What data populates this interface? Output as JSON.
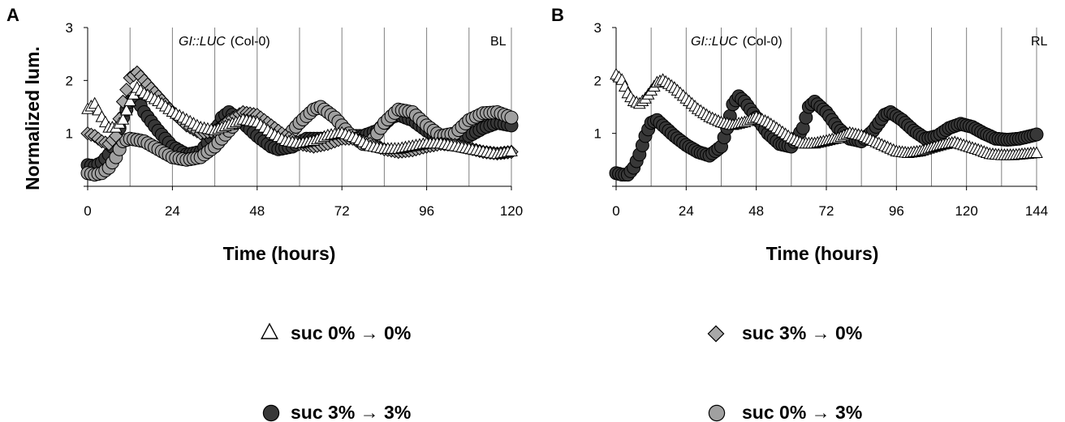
{
  "colors": {
    "suc00": "#ffffff",
    "suc30": "#a8a8a8",
    "suc33": "#383838",
    "suc03": "#a0a0a0",
    "edge": "#000000",
    "grid": "#808080"
  },
  "legend": [
    {
      "label": "suc 0% → 0%",
      "marker": "triangle",
      "fill": "#ffffff"
    },
    {
      "label": "suc 3% → 0%",
      "marker": "diamond",
      "fill": "#a8a8a8"
    },
    {
      "label": "suc 3% → 3%",
      "marker": "circle",
      "fill": "#383838"
    },
    {
      "label": "suc 0% → 3%",
      "marker": "circle",
      "fill": "#a0a0a0"
    }
  ],
  "chart_data": [
    {
      "type": "scatter",
      "panel": "A",
      "gene_italic": "GI::LUC",
      "genotype": "(Col-0)",
      "light": "BL",
      "xlabel": "Time (hours)",
      "ylabel": "Normalized lum.",
      "xlim": [
        0,
        120
      ],
      "ylim": [
        0,
        3
      ],
      "xticks": [
        0,
        24,
        48,
        72,
        96,
        120
      ],
      "yticks": [
        1,
        2,
        3
      ],
      "grid": "vertical",
      "series": [
        {
          "name": "suc 0% → 0%",
          "marker": "triangle",
          "points": [
            [
              0,
              1.45
            ],
            [
              2,
              1.55
            ],
            [
              4,
              1.3
            ],
            [
              6,
              1.1
            ],
            [
              8,
              1.1
            ],
            [
              10,
              1.25
            ],
            [
              12,
              1.6
            ],
            [
              14,
              1.85
            ],
            [
              16,
              1.75
            ],
            [
              20,
              1.6
            ],
            [
              24,
              1.4
            ],
            [
              28,
              1.25
            ],
            [
              32,
              1.1
            ],
            [
              36,
              1.05
            ],
            [
              40,
              1.15
            ],
            [
              44,
              1.25
            ],
            [
              48,
              1.2
            ],
            [
              52,
              1.0
            ],
            [
              56,
              0.85
            ],
            [
              60,
              0.8
            ],
            [
              64,
              0.85
            ],
            [
              68,
              0.95
            ],
            [
              72,
              1.0
            ],
            [
              76,
              0.9
            ],
            [
              80,
              0.75
            ],
            [
              84,
              0.7
            ],
            [
              88,
              0.7
            ],
            [
              92,
              0.75
            ],
            [
              96,
              0.8
            ],
            [
              100,
              0.8
            ],
            [
              104,
              0.75
            ],
            [
              108,
              0.7
            ],
            [
              112,
              0.65
            ],
            [
              116,
              0.6
            ],
            [
              120,
              0.65
            ]
          ]
        },
        {
          "name": "suc 3% → 0%",
          "marker": "diamond",
          "points": [
            [
              0,
              1.0
            ],
            [
              2,
              0.95
            ],
            [
              4,
              0.85
            ],
            [
              6,
              0.8
            ],
            [
              8,
              0.95
            ],
            [
              10,
              1.6
            ],
            [
              12,
              2.05
            ],
            [
              14,
              2.15
            ],
            [
              16,
              2.0
            ],
            [
              20,
              1.7
            ],
            [
              24,
              1.4
            ],
            [
              28,
              1.15
            ],
            [
              32,
              1.0
            ],
            [
              36,
              1.05
            ],
            [
              40,
              1.25
            ],
            [
              44,
              1.4
            ],
            [
              48,
              1.35
            ],
            [
              52,
              1.15
            ],
            [
              56,
              0.95
            ],
            [
              60,
              0.8
            ],
            [
              64,
              0.75
            ],
            [
              68,
              0.8
            ],
            [
              72,
              0.9
            ],
            [
              76,
              0.9
            ],
            [
              80,
              0.8
            ],
            [
              84,
              0.7
            ],
            [
              88,
              0.65
            ],
            [
              92,
              0.68
            ],
            [
              96,
              0.75
            ],
            [
              100,
              0.8
            ],
            [
              104,
              0.78
            ],
            [
              108,
              0.72
            ],
            [
              112,
              0.65
            ],
            [
              116,
              0.62
            ],
            [
              120,
              0.65
            ]
          ]
        },
        {
          "name": "suc 3% → 3%",
          "marker": "circle",
          "points": [
            [
              0,
              0.4
            ],
            [
              2,
              0.38
            ],
            [
              4,
              0.45
            ],
            [
              6,
              0.6
            ],
            [
              8,
              0.9
            ],
            [
              10,
              1.3
            ],
            [
              12,
              1.6
            ],
            [
              14,
              1.65
            ],
            [
              16,
              1.4
            ],
            [
              20,
              1.05
            ],
            [
              24,
              0.75
            ],
            [
              28,
              0.6
            ],
            [
              32,
              0.65
            ],
            [
              36,
              1.0
            ],
            [
              38,
              1.3
            ],
            [
              40,
              1.4
            ],
            [
              44,
              1.2
            ],
            [
              48,
              0.95
            ],
            [
              52,
              0.75
            ],
            [
              54,
              0.7
            ],
            [
              58,
              0.75
            ],
            [
              62,
              0.9
            ],
            [
              66,
              0.9
            ],
            [
              70,
              0.9
            ],
            [
              74,
              0.95
            ],
            [
              78,
              0.95
            ],
            [
              82,
              1.05
            ],
            [
              86,
              1.3
            ],
            [
              88,
              1.35
            ],
            [
              92,
              1.25
            ],
            [
              96,
              1.05
            ],
            [
              100,
              0.9
            ],
            [
              104,
              0.85
            ],
            [
              108,
              0.95
            ],
            [
              112,
              1.1
            ],
            [
              116,
              1.2
            ],
            [
              120,
              1.15
            ]
          ]
        },
        {
          "name": "suc 0% → 3%",
          "marker": "circle",
          "points": [
            [
              0,
              0.25
            ],
            [
              2,
              0.22
            ],
            [
              4,
              0.25
            ],
            [
              6,
              0.35
            ],
            [
              8,
              0.55
            ],
            [
              10,
              0.85
            ],
            [
              12,
              0.9
            ],
            [
              16,
              0.85
            ],
            [
              20,
              0.7
            ],
            [
              24,
              0.55
            ],
            [
              28,
              0.5
            ],
            [
              32,
              0.55
            ],
            [
              36,
              0.75
            ],
            [
              40,
              1.05
            ],
            [
              44,
              1.35
            ],
            [
              48,
              1.3
            ],
            [
              52,
              1.0
            ],
            [
              56,
              0.9
            ],
            [
              60,
              1.2
            ],
            [
              64,
              1.45
            ],
            [
              66,
              1.5
            ],
            [
              70,
              1.3
            ],
            [
              74,
              1.0
            ],
            [
              78,
              0.8
            ],
            [
              80,
              0.8
            ],
            [
              84,
              1.2
            ],
            [
              88,
              1.45
            ],
            [
              92,
              1.4
            ],
            [
              96,
              1.15
            ],
            [
              100,
              0.95
            ],
            [
              104,
              1.0
            ],
            [
              108,
              1.25
            ],
            [
              112,
              1.38
            ],
            [
              116,
              1.4
            ],
            [
              120,
              1.3
            ]
          ]
        }
      ]
    },
    {
      "type": "scatter",
      "panel": "B",
      "gene_italic": "GI::LUC",
      "genotype": "(Col-0)",
      "light": "RL",
      "xlabel": "Time (hours)",
      "ylabel": "",
      "xlim": [
        0,
        144
      ],
      "ylim": [
        0,
        3
      ],
      "xticks": [
        0,
        24,
        48,
        72,
        96,
        120,
        144
      ],
      "yticks": [
        1,
        2,
        3
      ],
      "grid": "vertical",
      "series": [
        {
          "name": "suc 0% → 0%",
          "marker": "triangle",
          "points": [
            [
              0,
              2.1
            ],
            [
              2,
              2.0
            ],
            [
              4,
              1.75
            ],
            [
              6,
              1.6
            ],
            [
              8,
              1.55
            ],
            [
              10,
              1.65
            ],
            [
              14,
              1.95
            ],
            [
              16,
              2.0
            ],
            [
              20,
              1.85
            ],
            [
              24,
              1.65
            ],
            [
              28,
              1.45
            ],
            [
              32,
              1.3
            ],
            [
              36,
              1.2
            ],
            [
              40,
              1.15
            ],
            [
              44,
              1.2
            ],
            [
              48,
              1.3
            ],
            [
              52,
              1.2
            ],
            [
              56,
              1.05
            ],
            [
              60,
              0.9
            ],
            [
              64,
              0.8
            ],
            [
              68,
              0.8
            ],
            [
              72,
              0.85
            ],
            [
              76,
              0.9
            ],
            [
              80,
              1.0
            ],
            [
              84,
              0.95
            ],
            [
              88,
              0.85
            ],
            [
              92,
              0.75
            ],
            [
              96,
              0.65
            ],
            [
              100,
              0.62
            ],
            [
              104,
              0.65
            ],
            [
              108,
              0.72
            ],
            [
              112,
              0.78
            ],
            [
              116,
              0.82
            ],
            [
              120,
              0.75
            ],
            [
              124,
              0.68
            ],
            [
              128,
              0.6
            ],
            [
              132,
              0.58
            ],
            [
              136,
              0.58
            ],
            [
              140,
              0.6
            ],
            [
              144,
              0.62
            ]
          ]
        },
        {
          "name": "suc 3% → 3%",
          "marker": "circle",
          "points": [
            [
              0,
              0.25
            ],
            [
              2,
              0.22
            ],
            [
              4,
              0.22
            ],
            [
              6,
              0.35
            ],
            [
              8,
              0.6
            ],
            [
              10,
              0.95
            ],
            [
              12,
              1.2
            ],
            [
              14,
              1.25
            ],
            [
              16,
              1.15
            ],
            [
              20,
              0.95
            ],
            [
              24,
              0.78
            ],
            [
              28,
              0.65
            ],
            [
              32,
              0.58
            ],
            [
              36,
              0.75
            ],
            [
              38,
              1.1
            ],
            [
              40,
              1.55
            ],
            [
              42,
              1.7
            ],
            [
              44,
              1.6
            ],
            [
              48,
              1.3
            ],
            [
              52,
              1.0
            ],
            [
              56,
              0.8
            ],
            [
              60,
              0.75
            ],
            [
              64,
              1.1
            ],
            [
              66,
              1.5
            ],
            [
              68,
              1.6
            ],
            [
              72,
              1.4
            ],
            [
              76,
              1.1
            ],
            [
              80,
              0.9
            ],
            [
              84,
              0.85
            ],
            [
              88,
              1.05
            ],
            [
              92,
              1.35
            ],
            [
              94,
              1.4
            ],
            [
              98,
              1.25
            ],
            [
              102,
              1.05
            ],
            [
              106,
              0.9
            ],
            [
              110,
              0.95
            ],
            [
              114,
              1.1
            ],
            [
              118,
              1.18
            ],
            [
              122,
              1.12
            ],
            [
              126,
              1.0
            ],
            [
              130,
              0.9
            ],
            [
              134,
              0.88
            ],
            [
              138,
              0.9
            ],
            [
              142,
              0.95
            ],
            [
              144,
              0.98
            ]
          ]
        }
      ]
    }
  ]
}
